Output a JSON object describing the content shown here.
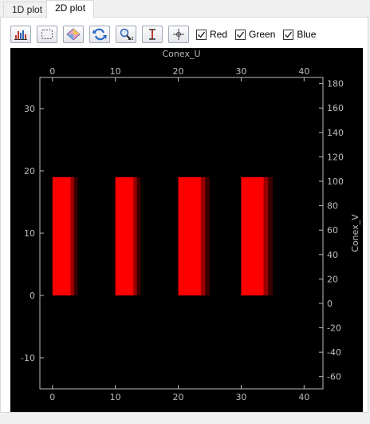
{
  "tabs": [
    {
      "label": "1D plot",
      "active": false
    },
    {
      "label": "2D plot",
      "active": true
    }
  ],
  "toolbar": {
    "buttons": [
      {
        "icon": "histogram-icon"
      },
      {
        "icon": "select-region-icon"
      },
      {
        "icon": "colormap-icon"
      },
      {
        "icon": "refresh-icon"
      },
      {
        "icon": "zoom-fit-icon"
      },
      {
        "icon": "vertical-cursor-icon"
      },
      {
        "icon": "crosshair-icon"
      }
    ],
    "channels": [
      {
        "label": "Red",
        "checked": true
      },
      {
        "label": "Green",
        "checked": true
      },
      {
        "label": "Blue",
        "checked": true
      }
    ]
  },
  "chart_data": {
    "type": "heatmap",
    "top_axis": {
      "label": "Conex_U",
      "ticks": [
        "0",
        "10",
        "20",
        "30",
        "40"
      ],
      "range": [
        -2,
        43
      ]
    },
    "bottom_axis": {
      "ticks": [
        "0",
        "10",
        "20",
        "30",
        "40"
      ],
      "range": [
        -2,
        43
      ]
    },
    "left_axis": {
      "ticks": [
        "30",
        "20",
        "10",
        "0",
        "-10"
      ],
      "range": [
        -15,
        35
      ]
    },
    "right_axis": {
      "label": "Conex_V",
      "ticks": [
        "180",
        "160",
        "140",
        "120",
        "100",
        "80",
        "60",
        "40",
        "20",
        "0",
        "-20",
        "-40",
        "-60"
      ],
      "range": [
        -70,
        185
      ]
    },
    "background_color": "#000000",
    "colormap_color": "#ff0000",
    "bands": [
      {
        "x_start": 0,
        "x_end": 4,
        "y_start": 0,
        "y_end": 19
      },
      {
        "x_start": 10,
        "x_end": 14,
        "y_start": 0,
        "y_end": 19
      },
      {
        "x_start": 20,
        "x_end": 25,
        "y_start": 0,
        "y_end": 19
      },
      {
        "x_start": 30,
        "x_end": 35,
        "y_start": 0,
        "y_end": 19
      }
    ]
  }
}
